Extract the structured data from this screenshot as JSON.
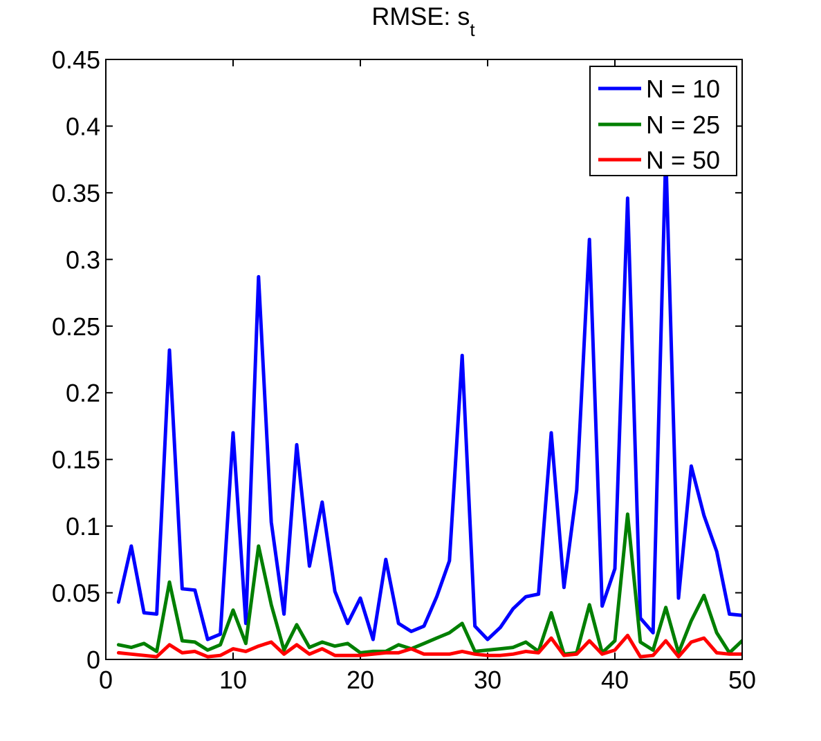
{
  "chart_data": {
    "type": "line",
    "title": "RMSE: s",
    "title_subscript": "t",
    "xlabel": "",
    "ylabel": "",
    "xlim": [
      0,
      50
    ],
    "ylim": [
      0,
      0.45
    ],
    "xticks": [
      "0",
      "10",
      "20",
      "30",
      "40",
      "50"
    ],
    "yticks": [
      "0",
      "0.05",
      "0.1",
      "0.15",
      "0.2",
      "0.25",
      "0.3",
      "0.35",
      "0.4",
      "0.45"
    ],
    "grid": false,
    "legend_position": "top-right",
    "x": [
      1,
      2,
      3,
      4,
      5,
      6,
      7,
      8,
      9,
      10,
      11,
      12,
      13,
      14,
      15,
      16,
      17,
      18,
      19,
      20,
      21,
      22,
      23,
      24,
      25,
      26,
      27,
      28,
      29,
      30,
      31,
      32,
      33,
      34,
      35,
      36,
      37,
      38,
      39,
      40,
      41,
      42,
      43,
      44,
      45,
      46,
      47,
      48,
      49,
      50
    ],
    "series": [
      {
        "name": "N = 10",
        "color": "#0000ff",
        "values": [
          0.043,
          0.085,
          0.035,
          0.034,
          0.232,
          0.053,
          0.052,
          0.015,
          0.019,
          0.17,
          0.027,
          0.287,
          0.103,
          0.034,
          0.161,
          0.07,
          0.118,
          0.051,
          0.027,
          0.046,
          0.015,
          0.075,
          0.027,
          0.021,
          0.025,
          0.047,
          0.074,
          0.228,
          0.025,
          0.015,
          0.024,
          0.038,
          0.047,
          0.049,
          0.17,
          0.054,
          0.127,
          0.315,
          0.04,
          0.068,
          0.346,
          0.031,
          0.02,
          0.38,
          0.046,
          0.145,
          0.108,
          0.081,
          0.034,
          0.033
        ]
      },
      {
        "name": "N = 25",
        "color": "#007f00",
        "values": [
          0.011,
          0.009,
          0.012,
          0.006,
          0.058,
          0.014,
          0.013,
          0.007,
          0.011,
          0.037,
          0.012,
          0.085,
          0.041,
          0.007,
          0.026,
          0.009,
          0.013,
          0.01,
          0.012,
          0.005,
          0.006,
          0.006,
          0.011,
          0.008,
          0.012,
          0.016,
          0.02,
          0.027,
          0.006,
          0.007,
          0.008,
          0.009,
          0.013,
          0.006,
          0.035,
          0.004,
          0.005,
          0.041,
          0.005,
          0.014,
          0.109,
          0.013,
          0.007,
          0.039,
          0.005,
          0.029,
          0.048,
          0.02,
          0.005,
          0.014
        ]
      },
      {
        "name": "N = 50",
        "color": "#ff0000",
        "values": [
          0.005,
          0.004,
          0.003,
          0.002,
          0.011,
          0.005,
          0.006,
          0.002,
          0.003,
          0.008,
          0.006,
          0.01,
          0.013,
          0.004,
          0.011,
          0.004,
          0.008,
          0.003,
          0.003,
          0.003,
          0.004,
          0.005,
          0.005,
          0.008,
          0.004,
          0.004,
          0.004,
          0.006,
          0.004,
          0.003,
          0.003,
          0.004,
          0.006,
          0.005,
          0.016,
          0.003,
          0.004,
          0.014,
          0.004,
          0.007,
          0.018,
          0.002,
          0.003,
          0.014,
          0.002,
          0.013,
          0.016,
          0.005,
          0.004,
          0.004
        ]
      }
    ]
  }
}
